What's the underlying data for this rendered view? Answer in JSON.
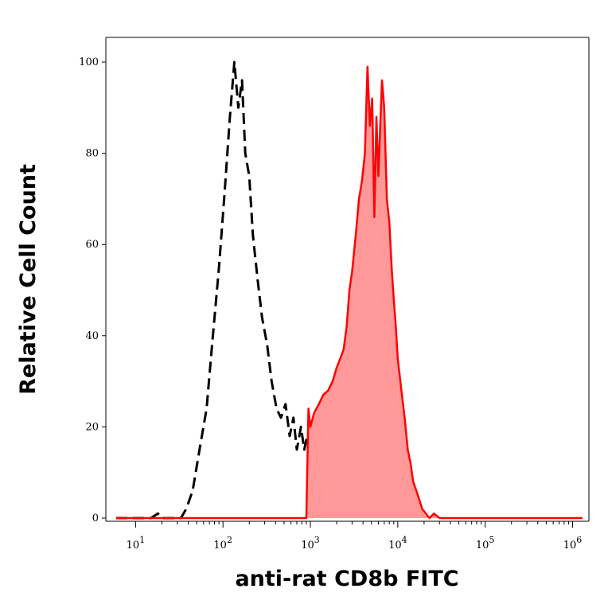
{
  "chart_data": {
    "type": "area",
    "xlabel": "anti-rat CD8b FITC",
    "ylabel": "Relative Cell Count",
    "xscale": "log",
    "xlim": [
      6,
      1300000
    ],
    "ylim": [
      0,
      105
    ],
    "grid": false,
    "legend": "none",
    "y_ticks": [
      0,
      20,
      40,
      60,
      80,
      100
    ],
    "y_tick_labels": [
      "0",
      "20",
      "40",
      "60",
      "80",
      "100"
    ],
    "x_ticks": [
      10,
      100,
      1000,
      10000,
      100000,
      1000000
    ],
    "x_tick_labels": [
      {
        "base": "10",
        "exp": "1"
      },
      {
        "base": "10",
        "exp": "2"
      },
      {
        "base": "10",
        "exp": "3"
      },
      {
        "base": "10",
        "exp": "4"
      },
      {
        "base": "10",
        "exp": "5"
      },
      {
        "base": "10",
        "exp": "6"
      }
    ],
    "series": [
      {
        "style": "dashed",
        "color": "#000000",
        "x": [
          6,
          15,
          18,
          20,
          24,
          28,
          33,
          38,
          45,
          55,
          65,
          75,
          90,
          105,
          120,
          135,
          150,
          165,
          180,
          200,
          220,
          250,
          280,
          320,
          360,
          410,
          460,
          520,
          580,
          640,
          700,
          780,
          850,
          920,
          980
        ],
        "y": [
          0,
          0,
          1,
          0,
          0,
          0,
          0,
          2,
          6,
          16,
          24,
          38,
          55,
          72,
          88,
          100,
          90,
          96,
          80,
          75,
          62,
          52,
          44,
          38,
          30,
          24,
          22,
          25,
          18,
          22,
          15,
          20,
          15,
          18,
          14
        ]
      },
      {
        "style": "filled",
        "color": "#ff0000",
        "fill": "#ff9999",
        "x": [
          6,
          900,
          920,
          950,
          1000,
          1100,
          1250,
          1400,
          1600,
          1800,
          2000,
          2200,
          2400,
          2600,
          2800,
          3000,
          3300,
          3600,
          3900,
          4200,
          4500,
          4800,
          5100,
          5400,
          5700,
          6000,
          6300,
          6600,
          7000,
          7500,
          8000,
          8500,
          9000,
          9500,
          10000,
          11000,
          12000,
          13000,
          14000,
          15000,
          17000,
          19000,
          21000,
          23000,
          26000,
          30000,
          35000,
          45000,
          60000,
          100000,
          1300000
        ],
        "y": [
          0,
          0,
          10,
          24,
          20,
          23,
          25,
          27,
          28,
          30,
          33,
          35,
          37,
          42,
          50,
          54,
          62,
          70,
          74,
          80,
          99,
          86,
          92,
          66,
          88,
          75,
          86,
          96,
          90,
          70,
          65,
          55,
          48,
          42,
          35,
          28,
          22,
          15,
          12,
          8,
          5,
          2,
          1,
          0,
          1,
          0,
          0,
          0,
          0,
          0,
          0
        ]
      }
    ]
  }
}
